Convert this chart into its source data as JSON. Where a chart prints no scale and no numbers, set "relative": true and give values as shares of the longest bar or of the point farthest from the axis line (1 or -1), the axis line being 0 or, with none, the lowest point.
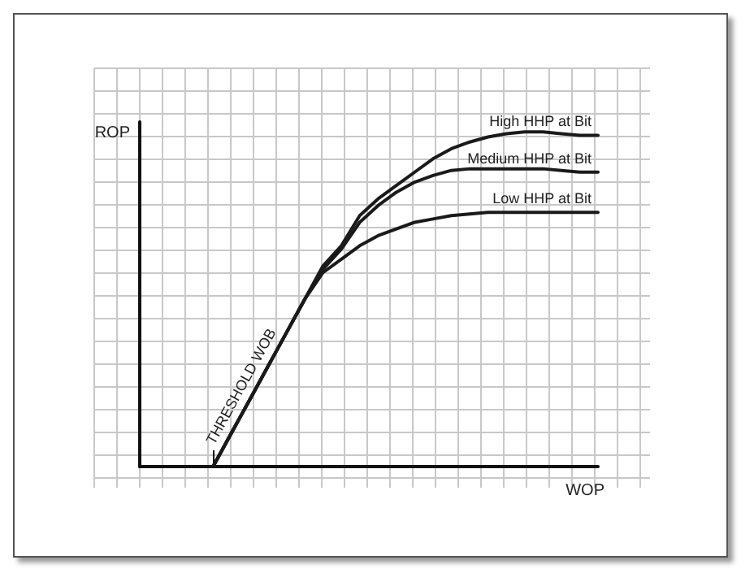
{
  "chart_data": {
    "type": "line",
    "relative": true,
    "xlabel": "WOP",
    "ylabel": "ROP",
    "grid": true,
    "marker": "none",
    "line_style": "solid",
    "categories": [
      null,
      null,
      null,
      null,
      null,
      null,
      null,
      null,
      null,
      null,
      null,
      null,
      null,
      null,
      null,
      null,
      null,
      null,
      null,
      null,
      null,
      null,
      null,
      null,
      null,
      null
    ],
    "annotations": [
      "THRESHOLD WOB"
    ],
    "series": [
      {
        "name": "High HHP at Bit",
        "color": "#1a1a1a",
        "values": [
          null,
          null,
          null,
          null,
          0,
          0.1,
          0.2,
          0.3,
          0.4,
          0.5,
          0.6,
          0.66,
          0.75,
          0.8,
          0.84,
          0.88,
          0.92,
          0.95,
          0.97,
          0.985,
          0.995,
          1,
          1,
          0.995,
          0.99,
          0.99
        ]
      },
      {
        "name": "Medium HHP at Bit",
        "color": "#1a1a1a",
        "values": [
          null,
          null,
          null,
          null,
          0,
          0.1,
          0.2,
          0.3,
          0.4,
          0.5,
          0.59,
          0.65,
          0.73,
          0.78,
          0.82,
          0.85,
          0.87,
          0.885,
          0.89,
          0.89,
          0.89,
          0.89,
          0.89,
          0.885,
          0.88,
          0.88
        ]
      },
      {
        "name": "Low HHP at Bit",
        "color": "#1a1a1a",
        "values": [
          null,
          null,
          null,
          null,
          0,
          0.1,
          0.2,
          0.3,
          0.4,
          0.5,
          0.58,
          0.62,
          0.66,
          0.69,
          0.71,
          0.73,
          0.74,
          0.75,
          0.755,
          0.76,
          0.76,
          0.76,
          0.76,
          0.76,
          0.76,
          0.76
        ]
      }
    ]
  }
}
